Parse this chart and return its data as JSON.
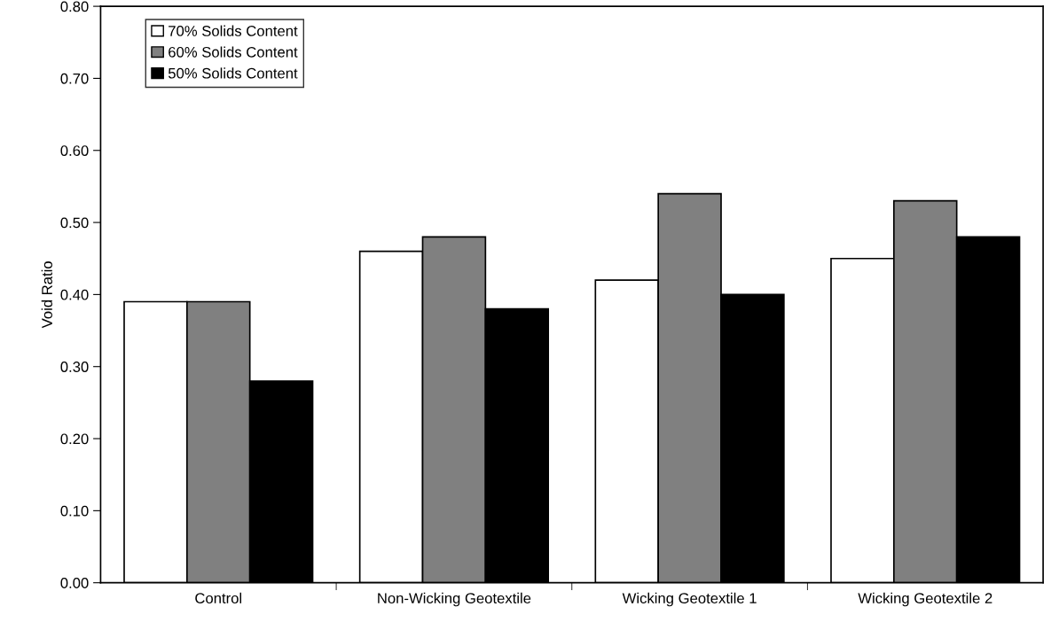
{
  "chart_data": {
    "type": "bar",
    "ylabel": "Void Ratio",
    "categories": [
      "Control",
      "Non-Wicking Geotextile",
      "Wicking Geotextile 1",
      "Wicking Geotextile 2"
    ],
    "series": [
      {
        "name": "70% Solids Content",
        "color": "#ffffff",
        "values": [
          0.39,
          0.46,
          0.42,
          0.45
        ]
      },
      {
        "name": "60% Solids Content",
        "color": "#808080",
        "values": [
          0.39,
          0.48,
          0.54,
          0.53
        ]
      },
      {
        "name": "50% Solids Content",
        "color": "#000000",
        "values": [
          0.28,
          0.38,
          0.4,
          0.48
        ]
      }
    ],
    "ylim": [
      0,
      0.8
    ],
    "yticks": [
      {
        "value": 0,
        "label": "0.00"
      },
      {
        "value": 0.1,
        "label": "0.10"
      },
      {
        "value": 0.2,
        "label": "0.20"
      },
      {
        "value": 0.3,
        "label": "0.30"
      },
      {
        "value": 0.4,
        "label": "0.40"
      },
      {
        "value": 0.5,
        "label": "0.50"
      },
      {
        "value": 0.6,
        "label": "0.60"
      },
      {
        "value": 0.7,
        "label": "0.70"
      },
      {
        "value": 0.8,
        "label": "0.80"
      }
    ],
    "grid": false,
    "legend": "top left"
  }
}
